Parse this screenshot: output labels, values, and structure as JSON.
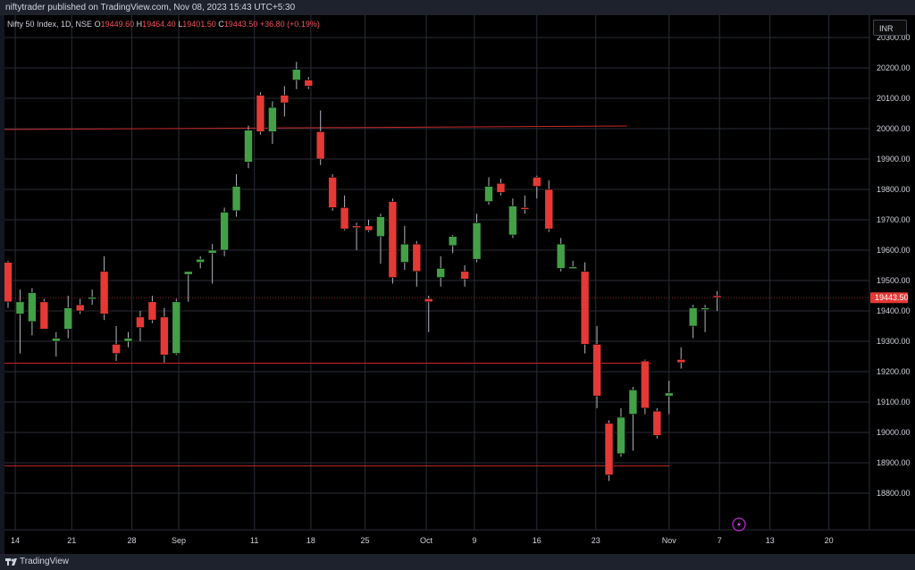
{
  "header": {
    "published_by": "niftytrader published on TradingView.com, Nov 08, 2023 15:43 UTC+5:30"
  },
  "legend": {
    "symbol": "Nifty 50 Index, 1D, NSE",
    "o_label": "O",
    "o": "19449.60",
    "h_label": "H",
    "h": "19464.40",
    "l_label": "L",
    "l": "19401.50",
    "c_label": "C",
    "c": "19443.50",
    "change": "+36.80 (+0.19%)"
  },
  "currency_button": "INR",
  "price_badge": "19443.50",
  "footer": {
    "brand": "TradingView"
  },
  "colors": {
    "up": "#43a047",
    "down": "#e53935",
    "level": "#c62828",
    "grid": "#2a2e39",
    "badge": "#e53935"
  },
  "chart_data": {
    "type": "candlestick",
    "title": "",
    "xlabel": "",
    "ylabel": "",
    "ylim": [
      18700,
      20350
    ],
    "y_ticks": [
      "20300.00",
      "20200.00",
      "20100.00",
      "20000.00",
      "19900.00",
      "19800.00",
      "19700.00",
      "19600.00",
      "19500.00",
      "19400.00",
      "19300.00",
      "19200.00",
      "19100.00",
      "19000.00",
      "18900.00",
      "18800.00"
    ],
    "x_ticks": [
      {
        "label": "14",
        "slot": 0.6
      },
      {
        "label": "21",
        "slot": 5.3
      },
      {
        "label": "28",
        "slot": 10.3
      },
      {
        "label": "Sep",
        "slot": 14.2
      },
      {
        "label": "11",
        "slot": 20.5
      },
      {
        "label": "18",
        "slot": 25.2
      },
      {
        "label": "25",
        "slot": 29.7
      },
      {
        "label": "Oct",
        "slot": 34.8
      },
      {
        "label": "9",
        "slot": 38.8
      },
      {
        "label": "16",
        "slot": 44.0
      },
      {
        "label": "23",
        "slot": 48.9
      },
      {
        "label": "Nov",
        "slot": 55.0
      },
      {
        "label": "7",
        "slot": 59.2
      },
      {
        "label": "13",
        "slot": 63.4
      },
      {
        "label": "20",
        "slot": 68.3
      }
    ],
    "candles": [
      {
        "o": 19560,
        "h": 19565,
        "l": 19410,
        "c": 19430
      },
      {
        "o": 19390,
        "h": 19470,
        "l": 19260,
        "c": 19430
      },
      {
        "o": 19365,
        "h": 19475,
        "l": 19320,
        "c": 19460
      },
      {
        "o": 19430,
        "h": 19440,
        "l": 19340,
        "c": 19340
      },
      {
        "o": 19300,
        "h": 19330,
        "l": 19250,
        "c": 19310
      },
      {
        "o": 19340,
        "h": 19450,
        "l": 19310,
        "c": 19410
      },
      {
        "o": 19420,
        "h": 19440,
        "l": 19390,
        "c": 19400
      },
      {
        "o": 19440,
        "h": 19470,
        "l": 19420,
        "c": 19445
      },
      {
        "o": 19530,
        "h": 19580,
        "l": 19370,
        "c": 19390
      },
      {
        "o": 19290,
        "h": 19350,
        "l": 19235,
        "c": 19260
      },
      {
        "o": 19300,
        "h": 19330,
        "l": 19280,
        "c": 19310
      },
      {
        "o": 19380,
        "h": 19400,
        "l": 19300,
        "c": 19345
      },
      {
        "o": 19430,
        "h": 19450,
        "l": 19360,
        "c": 19370
      },
      {
        "o": 19380,
        "h": 19410,
        "l": 19230,
        "c": 19255
      },
      {
        "o": 19260,
        "h": 19440,
        "l": 19255,
        "c": 19430
      },
      {
        "o": 19520,
        "h": 19530,
        "l": 19430,
        "c": 19530
      },
      {
        "o": 19560,
        "h": 19580,
        "l": 19540,
        "c": 19570
      },
      {
        "o": 19590,
        "h": 19620,
        "l": 19490,
        "c": 19600
      },
      {
        "o": 19600,
        "h": 19740,
        "l": 19580,
        "c": 19725
      },
      {
        "o": 19730,
        "h": 19850,
        "l": 19710,
        "c": 19810
      },
      {
        "o": 19890,
        "h": 20010,
        "l": 19870,
        "c": 19995
      },
      {
        "o": 20110,
        "h": 20120,
        "l": 19980,
        "c": 19990
      },
      {
        "o": 19990,
        "h": 20090,
        "l": 19950,
        "c": 20070
      },
      {
        "o": 20110,
        "h": 20140,
        "l": 20040,
        "c": 20085
      },
      {
        "o": 20160,
        "h": 20220,
        "l": 20130,
        "c": 20195
      },
      {
        "o": 20160,
        "h": 20170,
        "l": 20130,
        "c": 20140
      },
      {
        "o": 19990,
        "h": 20060,
        "l": 19880,
        "c": 19900
      },
      {
        "o": 19840,
        "h": 19850,
        "l": 19730,
        "c": 19740
      },
      {
        "o": 19740,
        "h": 19780,
        "l": 19665,
        "c": 19670
      },
      {
        "o": 19680,
        "h": 19690,
        "l": 19600,
        "c": 19675
      },
      {
        "o": 19680,
        "h": 19700,
        "l": 19660,
        "c": 19665
      },
      {
        "o": 19645,
        "h": 19720,
        "l": 19555,
        "c": 19710
      },
      {
        "o": 19760,
        "h": 19770,
        "l": 19490,
        "c": 19510
      },
      {
        "o": 19560,
        "h": 19680,
        "l": 19535,
        "c": 19620
      },
      {
        "o": 19620,
        "h": 19630,
        "l": 19480,
        "c": 19530
      },
      {
        "o": 19440,
        "h": 19450,
        "l": 19330,
        "c": 19430
      },
      {
        "o": 19510,
        "h": 19580,
        "l": 19480,
        "c": 19540
      },
      {
        "o": 19615,
        "h": 19650,
        "l": 19590,
        "c": 19645
      },
      {
        "o": 19530,
        "h": 19550,
        "l": 19480,
        "c": 19505
      },
      {
        "o": 19570,
        "h": 19720,
        "l": 19560,
        "c": 19690
      },
      {
        "o": 19760,
        "h": 19840,
        "l": 19750,
        "c": 19810
      },
      {
        "o": 19820,
        "h": 19835,
        "l": 19780,
        "c": 19790
      },
      {
        "o": 19650,
        "h": 19770,
        "l": 19640,
        "c": 19745
      },
      {
        "o": 19740,
        "h": 19780,
        "l": 19720,
        "c": 19735
      },
      {
        "o": 19840,
        "h": 19845,
        "l": 19770,
        "c": 19810
      },
      {
        "o": 19800,
        "h": 19830,
        "l": 19660,
        "c": 19670
      },
      {
        "o": 19540,
        "h": 19640,
        "l": 19530,
        "c": 19620
      },
      {
        "o": 19545,
        "h": 19565,
        "l": 19540,
        "c": 19545
      },
      {
        "o": 19530,
        "h": 19560,
        "l": 19260,
        "c": 19290
      },
      {
        "o": 19290,
        "h": 19350,
        "l": 19080,
        "c": 19120
      },
      {
        "o": 19030,
        "h": 19040,
        "l": 18840,
        "c": 18860
      },
      {
        "o": 18930,
        "h": 19080,
        "l": 18920,
        "c": 19050
      },
      {
        "o": 19060,
        "h": 19150,
        "l": 18940,
        "c": 19140
      },
      {
        "o": 19235,
        "h": 19240,
        "l": 19060,
        "c": 19080
      },
      {
        "o": 19070,
        "h": 19080,
        "l": 18980,
        "c": 18990
      },
      {
        "o": 19120,
        "h": 19170,
        "l": 19060,
        "c": 19130
      },
      {
        "o": 19240,
        "h": 19280,
        "l": 19210,
        "c": 19230
      },
      {
        "o": 19350,
        "h": 19420,
        "l": 19310,
        "c": 19410
      },
      {
        "o": 19405,
        "h": 19420,
        "l": 19330,
        "c": 19410
      },
      {
        "o": 19450,
        "h": 19465,
        "l": 19400,
        "c": 19445
      }
    ],
    "levels": [
      {
        "y": 19997,
        "y_end": 20009,
        "x_start": 0,
        "x_end": 51.5
      },
      {
        "y": 19228,
        "y_end": 19228,
        "x_start": 0,
        "x_end": 53.5
      },
      {
        "y": 18890,
        "y_end": 18890,
        "x_start": 0,
        "x_end": 55
      }
    ],
    "last_price": 19443.5
  }
}
